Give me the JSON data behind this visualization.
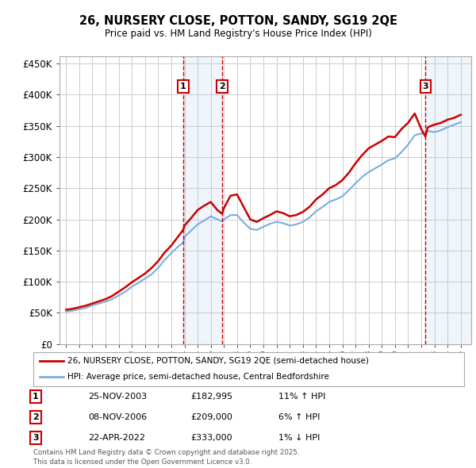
{
  "title": "26, NURSERY CLOSE, POTTON, SANDY, SG19 2QE",
  "subtitle": "Price paid vs. HM Land Registry's House Price Index (HPI)",
  "ylabel_ticks": [
    "£0",
    "£50K",
    "£100K",
    "£150K",
    "£200K",
    "£250K",
    "£300K",
    "£350K",
    "£400K",
    "£450K"
  ],
  "ytick_values": [
    0,
    50000,
    100000,
    150000,
    200000,
    250000,
    300000,
    350000,
    400000,
    450000
  ],
  "xmin": 1994.5,
  "xmax": 2025.8,
  "ymin": 0,
  "ymax": 462000,
  "background_color": "#ffffff",
  "plot_bg_color": "#ffffff",
  "grid_color": "#cccccc",
  "sale_dates": [
    2003.9,
    2006.86,
    2022.31
  ],
  "sale_prices": [
    182995,
    209000,
    333000
  ],
  "sale_labels": [
    "1",
    "2",
    "3"
  ],
  "sale_date_strs": [
    "25-NOV-2003",
    "08-NOV-2006",
    "22-APR-2022"
  ],
  "sale_price_strs": [
    "£182,995",
    "£209,000",
    "£333,000"
  ],
  "sale_hpi_strs": [
    "11% ↑ HPI",
    "6% ↑ HPI",
    "1% ↓ HPI"
  ],
  "red_line_color": "#cc0000",
  "blue_line_color": "#7aaedc",
  "legend_line1": "26, NURSERY CLOSE, POTTON, SANDY, SG19 2QE (semi-detached house)",
  "legend_line2": "HPI: Average price, semi-detached house, Central Bedfordshire",
  "footnote": "Contains HM Land Registry data © Crown copyright and database right 2025.\nThis data is licensed under the Open Government Licence v3.0.",
  "hpi_years": [
    1995.0,
    1995.5,
    1996.0,
    1996.5,
    1997.0,
    1997.5,
    1998.0,
    1998.5,
    1999.0,
    1999.5,
    2000.0,
    2000.5,
    2001.0,
    2001.5,
    2002.0,
    2002.5,
    2003.0,
    2003.5,
    2003.9,
    2004.0,
    2004.5,
    2005.0,
    2005.5,
    2006.0,
    2006.5,
    2006.86,
    2007.0,
    2007.5,
    2008.0,
    2008.5,
    2009.0,
    2009.5,
    2010.0,
    2010.5,
    2011.0,
    2011.5,
    2012.0,
    2012.5,
    2013.0,
    2013.5,
    2014.0,
    2014.5,
    2015.0,
    2015.5,
    2016.0,
    2016.5,
    2017.0,
    2017.5,
    2018.0,
    2018.5,
    2019.0,
    2019.5,
    2020.0,
    2020.5,
    2021.0,
    2021.5,
    2022.0,
    2022.31,
    2022.5,
    2023.0,
    2023.5,
    2024.0,
    2024.5,
    2025.0
  ],
  "hpi_values": [
    52000,
    53500,
    56000,
    58000,
    62000,
    65000,
    68000,
    72000,
    78000,
    84000,
    92000,
    98000,
    105000,
    112000,
    122000,
    135000,
    146000,
    156000,
    163000,
    172000,
    182000,
    192000,
    198000,
    205000,
    200000,
    197000,
    200000,
    207000,
    207000,
    195000,
    185000,
    183000,
    188000,
    193000,
    196000,
    194000,
    190000,
    192000,
    196000,
    203000,
    213000,
    220000,
    228000,
    232000,
    237000,
    247000,
    258000,
    268000,
    276000,
    282000,
    288000,
    295000,
    298000,
    308000,
    320000,
    335000,
    338000,
    338000,
    342000,
    340000,
    343000,
    348000,
    352000,
    356000
  ],
  "red_years": [
    1995.0,
    1995.5,
    1996.0,
    1996.5,
    1997.0,
    1997.5,
    1998.0,
    1998.5,
    1999.0,
    1999.5,
    2000.0,
    2000.5,
    2001.0,
    2001.5,
    2002.0,
    2002.5,
    2003.0,
    2003.5,
    2003.9,
    2004.0,
    2004.5,
    2005.0,
    2005.5,
    2006.0,
    2006.5,
    2006.86,
    2007.0,
    2007.5,
    2008.0,
    2008.5,
    2009.0,
    2009.5,
    2010.0,
    2010.5,
    2011.0,
    2011.5,
    2012.0,
    2012.5,
    2013.0,
    2013.5,
    2014.0,
    2014.5,
    2015.0,
    2015.5,
    2016.0,
    2016.5,
    2017.0,
    2017.5,
    2018.0,
    2018.5,
    2019.0,
    2019.5,
    2020.0,
    2020.5,
    2021.0,
    2021.5,
    2022.0,
    2022.31,
    2022.5,
    2023.0,
    2023.5,
    2024.0,
    2024.5,
    2025.0
  ],
  "red_values": [
    55000,
    56500,
    59000,
    61500,
    65000,
    68500,
    72000,
    77000,
    84000,
    91000,
    99000,
    106000,
    113000,
    122000,
    133000,
    147000,
    158000,
    172000,
    182995,
    190000,
    202000,
    215000,
    222000,
    228000,
    215000,
    209000,
    218000,
    238000,
    240000,
    220000,
    200000,
    196000,
    202000,
    207000,
    213000,
    210000,
    205000,
    207000,
    212000,
    220000,
    232000,
    240000,
    250000,
    255000,
    263000,
    275000,
    290000,
    303000,
    314000,
    320000,
    326000,
    333000,
    332000,
    345000,
    355000,
    370000,
    345000,
    333000,
    348000,
    352000,
    355000,
    360000,
    363000,
    368000
  ]
}
